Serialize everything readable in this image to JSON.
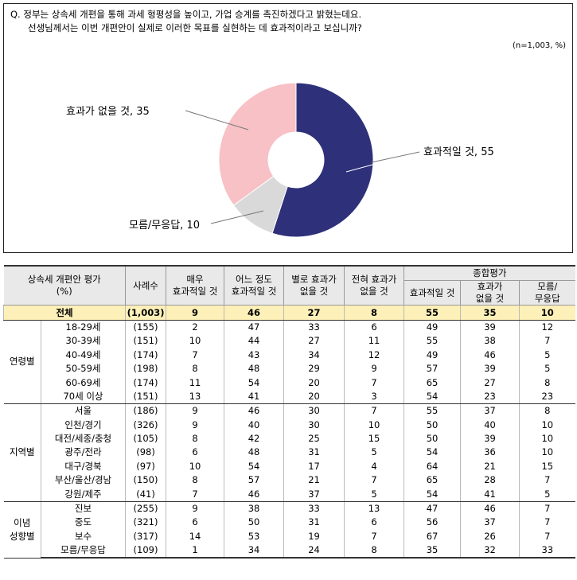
{
  "question": {
    "line1": "Q. 정부는 상속세 개편을 통해 과세 형평성을 높이고, 가업 승계를 촉진하겠다고 밝혔는데요.",
    "line2": "선생님께서는 이번 개편안이 실제로 이러한 목표를 실현하는 데 효과적이라고 보십니까?"
  },
  "sample_note": "(n=1,003,  %)",
  "chart_data": {
    "type": "pie",
    "donut": true,
    "slices": [
      {
        "label": "효과적일 것",
        "value": 55,
        "color": "#2e3179",
        "display": "효과적일 것, 55"
      },
      {
        "label": "모름/무응답",
        "value": 10,
        "color": "#d9d9d9",
        "display": "모름/무응답, 10"
      },
      {
        "label": "효과가 없을 것",
        "value": 35,
        "color": "#f7c1c6",
        "display": "효과가 없을 것, 35"
      }
    ]
  },
  "table": {
    "header": {
      "item": "상속세 개편안 평가\n(%)",
      "n": "사례수",
      "c1": "매우\n효과적일 것",
      "c2": "어느 정도\n효과적일 것",
      "c3": "별로 효과가\n없을 것",
      "c4": "전혀 효과가\n없을 것",
      "summary": "종합평가",
      "s1": "효과적일 것",
      "s2": "효과가\n없을 것",
      "s3": "모름/\n무응답"
    },
    "total": {
      "label": "전체",
      "n": "(1,003)",
      "v": [
        "9",
        "46",
        "27",
        "8",
        "55",
        "35",
        "10"
      ]
    },
    "groups": [
      {
        "name": "연령별",
        "rows": [
          {
            "label": "18-29세",
            "n": "(155)",
            "v": [
              "2",
              "47",
              "33",
              "6",
              "49",
              "39",
              "12"
            ]
          },
          {
            "label": "30-39세",
            "n": "(151)",
            "v": [
              "10",
              "44",
              "27",
              "11",
              "55",
              "38",
              "7"
            ]
          },
          {
            "label": "40-49세",
            "n": "(174)",
            "v": [
              "7",
              "43",
              "34",
              "12",
              "49",
              "46",
              "5"
            ]
          },
          {
            "label": "50-59세",
            "n": "(198)",
            "v": [
              "8",
              "48",
              "29",
              "9",
              "57",
              "39",
              "5"
            ]
          },
          {
            "label": "60-69세",
            "n": "(174)",
            "v": [
              "11",
              "54",
              "20",
              "7",
              "65",
              "27",
              "8"
            ]
          },
          {
            "label": "70세 이상",
            "n": "(151)",
            "v": [
              "13",
              "41",
              "20",
              "3",
              "54",
              "23",
              "23"
            ]
          }
        ]
      },
      {
        "name": "지역별",
        "rows": [
          {
            "label": "서울",
            "n": "(186)",
            "v": [
              "9",
              "46",
              "30",
              "7",
              "55",
              "37",
              "8"
            ]
          },
          {
            "label": "인천/경기",
            "n": "(326)",
            "v": [
              "9",
              "40",
              "30",
              "10",
              "50",
              "40",
              "10"
            ]
          },
          {
            "label": "대전/세종/충청",
            "n": "(105)",
            "v": [
              "8",
              "42",
              "25",
              "15",
              "50",
              "39",
              "10"
            ]
          },
          {
            "label": "광주/전라",
            "n": "(98)",
            "v": [
              "6",
              "48",
              "31",
              "5",
              "54",
              "36",
              "10"
            ]
          },
          {
            "label": "대구/경북",
            "n": "(97)",
            "v": [
              "10",
              "54",
              "17",
              "4",
              "64",
              "21",
              "15"
            ]
          },
          {
            "label": "부산/울산/경남",
            "n": "(150)",
            "v": [
              "8",
              "57",
              "21",
              "7",
              "65",
              "28",
              "7"
            ]
          },
          {
            "label": "강원/제주",
            "n": "(41)",
            "v": [
              "7",
              "46",
              "37",
              "5",
              "54",
              "41",
              "5"
            ]
          }
        ]
      },
      {
        "name": "이념\n성향별",
        "rows": [
          {
            "label": "진보",
            "n": "(255)",
            "v": [
              "9",
              "38",
              "33",
              "13",
              "47",
              "46",
              "7"
            ]
          },
          {
            "label": "중도",
            "n": "(321)",
            "v": [
              "6",
              "50",
              "31",
              "6",
              "56",
              "37",
              "7"
            ]
          },
          {
            "label": "보수",
            "n": "(317)",
            "v": [
              "14",
              "53",
              "19",
              "7",
              "67",
              "26",
              "7"
            ]
          },
          {
            "label": "모름/무응답",
            "n": "(109)",
            "v": [
              "1",
              "34",
              "24",
              "8",
              "35",
              "32",
              "33"
            ]
          }
        ]
      }
    ]
  }
}
